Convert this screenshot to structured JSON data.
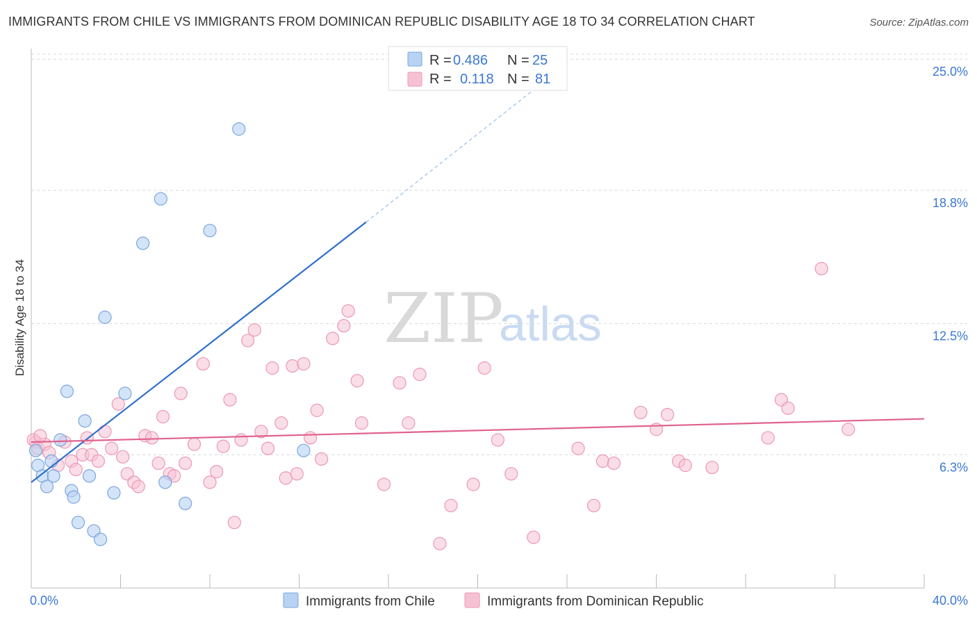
{
  "header": {
    "title": "IMMIGRANTS FROM CHILE VS IMMIGRANTS FROM DOMINICAN REPUBLIC DISABILITY AGE 18 TO 34 CORRELATION CHART",
    "source": "Source: ZipAtlas.com"
  },
  "watermark": {
    "part1": "ZIP",
    "part2": "atlas"
  },
  "colors": {
    "chile_fill": "#b8d2f3",
    "chile_stroke": "#7aa6de",
    "chile_line": "#2e6fcc",
    "dr_fill": "#f6c2d3",
    "dr_stroke": "#ec97b4",
    "dr_line": "#e0628d",
    "axis_text": "#3b78d4",
    "grid": "#d7d7d7"
  },
  "legend": {
    "rows": [
      {
        "r_label": "R =",
        "r_value": "0.486",
        "n_label": "N =",
        "n_value": "25"
      },
      {
        "r_label": "R =",
        "r_value": "0.118",
        "n_label": "N =",
        "n_value": "81"
      }
    ]
  },
  "bottom_legend": {
    "items": [
      {
        "label": "Immigrants from Chile"
      },
      {
        "label": "Immigrants from Dominican Republic"
      }
    ]
  },
  "chart_data": {
    "type": "scatter",
    "title": "IMMIGRANTS FROM CHILE VS IMMIGRANTS FROM DOMINICAN REPUBLIC DISABILITY AGE 18 TO 34 CORRELATION CHART",
    "xlabel": "",
    "ylabel": "Disability Age 18 to 34",
    "xlim": [
      0,
      40
    ],
    "ylim": [
      0,
      25.5
    ],
    "y_ticks": [
      {
        "value": 6.3,
        "label": "6.3%"
      },
      {
        "value": 12.5,
        "label": "12.5%"
      },
      {
        "value": 18.8,
        "label": "18.8%"
      },
      {
        "value": 25.0,
        "label": "25.0%"
      }
    ],
    "x_tick_labels": [
      {
        "value": 0,
        "label": "0.0%"
      },
      {
        "value": 40,
        "label": "40.0%"
      }
    ],
    "x_minor_ticks": [
      4,
      8,
      12,
      16,
      20,
      24,
      28,
      32,
      36,
      40
    ],
    "series": [
      {
        "name": "Immigrants from Chile",
        "R": 0.486,
        "N": 25,
        "trend": {
          "x0": 0,
          "y0": 5.0,
          "x1": 15.0,
          "y1": 17.3,
          "dash_to_x": 24.0,
          "dash_to_y": 24.8
        },
        "points": [
          [
            0.2,
            6.5
          ],
          [
            0.3,
            5.8
          ],
          [
            0.5,
            5.3
          ],
          [
            0.7,
            4.8
          ],
          [
            0.9,
            6.0
          ],
          [
            1.0,
            5.3
          ],
          [
            1.3,
            7.0
          ],
          [
            1.6,
            9.3
          ],
          [
            1.8,
            4.6
          ],
          [
            1.9,
            4.3
          ],
          [
            2.1,
            3.1
          ],
          [
            2.4,
            7.9
          ],
          [
            2.6,
            5.3
          ],
          [
            2.8,
            2.7
          ],
          [
            3.1,
            2.3
          ],
          [
            3.3,
            12.8
          ],
          [
            3.7,
            4.5
          ],
          [
            4.2,
            9.2
          ],
          [
            5.0,
            16.3
          ],
          [
            5.8,
            18.4
          ],
          [
            6.0,
            5.0
          ],
          [
            6.9,
            4.0
          ],
          [
            8.0,
            16.9
          ],
          [
            9.3,
            21.7
          ],
          [
            12.2,
            6.5
          ]
        ]
      },
      {
        "name": "Immigrants from Dominican Republic",
        "R": 0.118,
        "N": 81,
        "trend": {
          "x0": 0,
          "y0": 6.9,
          "x1": 40,
          "y1": 8.0
        },
        "points": [
          [
            0.2,
            6.9
          ],
          [
            0.3,
            6.6
          ],
          [
            0.6,
            6.8
          ],
          [
            0.8,
            6.4
          ],
          [
            1.2,
            5.8
          ],
          [
            1.5,
            6.9
          ],
          [
            1.8,
            6.0
          ],
          [
            2.0,
            5.6
          ],
          [
            2.3,
            6.3
          ],
          [
            2.5,
            7.1
          ],
          [
            2.7,
            6.3
          ],
          [
            3.0,
            6.0
          ],
          [
            3.3,
            7.4
          ],
          [
            3.6,
            6.6
          ],
          [
            3.9,
            8.7
          ],
          [
            4.1,
            6.2
          ],
          [
            4.3,
            5.4
          ],
          [
            4.6,
            5.0
          ],
          [
            4.8,
            4.8
          ],
          [
            5.1,
            7.2
          ],
          [
            5.4,
            7.1
          ],
          [
            5.7,
            5.9
          ],
          [
            5.9,
            8.1
          ],
          [
            6.2,
            5.4
          ],
          [
            6.4,
            5.3
          ],
          [
            6.7,
            9.2
          ],
          [
            6.9,
            5.9
          ],
          [
            7.3,
            6.8
          ],
          [
            7.7,
            10.6
          ],
          [
            8.0,
            5.0
          ],
          [
            8.3,
            5.5
          ],
          [
            8.6,
            6.7
          ],
          [
            8.9,
            8.9
          ],
          [
            9.1,
            3.1
          ],
          [
            9.4,
            7.0
          ],
          [
            9.7,
            11.7
          ],
          [
            10.0,
            12.2
          ],
          [
            10.3,
            7.4
          ],
          [
            10.6,
            6.6
          ],
          [
            10.8,
            10.4
          ],
          [
            11.2,
            7.8
          ],
          [
            11.4,
            5.2
          ],
          [
            11.7,
            10.5
          ],
          [
            11.9,
            5.4
          ],
          [
            12.2,
            10.6
          ],
          [
            12.5,
            7.1
          ],
          [
            12.8,
            8.4
          ],
          [
            13.0,
            6.1
          ],
          [
            13.5,
            11.8
          ],
          [
            14.0,
            12.4
          ],
          [
            14.2,
            13.1
          ],
          [
            14.6,
            9.8
          ],
          [
            14.8,
            7.8
          ],
          [
            15.8,
            4.9
          ],
          [
            16.5,
            9.7
          ],
          [
            16.9,
            7.8
          ],
          [
            17.4,
            10.1
          ],
          [
            18.3,
            2.1
          ],
          [
            18.8,
            3.9
          ],
          [
            19.8,
            4.9
          ],
          [
            20.3,
            10.4
          ],
          [
            20.9,
            7.0
          ],
          [
            21.5,
            5.4
          ],
          [
            22.5,
            2.4
          ],
          [
            24.5,
            6.6
          ],
          [
            25.2,
            3.9
          ],
          [
            25.6,
            6.0
          ],
          [
            26.1,
            5.9
          ],
          [
            27.3,
            8.3
          ],
          [
            28.0,
            7.5
          ],
          [
            28.5,
            8.2
          ],
          [
            29.0,
            6.0
          ],
          [
            29.3,
            5.8
          ],
          [
            30.5,
            5.7
          ],
          [
            33.0,
            7.1
          ],
          [
            33.6,
            8.9
          ],
          [
            33.9,
            8.5
          ],
          [
            35.4,
            15.1
          ],
          [
            36.6,
            7.5
          ],
          [
            0.1,
            7.0
          ],
          [
            0.4,
            7.2
          ]
        ]
      }
    ]
  }
}
